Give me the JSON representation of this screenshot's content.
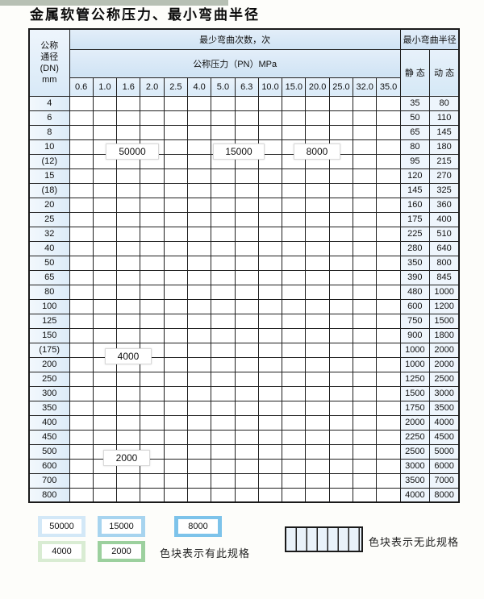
{
  "title": "金属软管公称压力、最小弯曲半径",
  "header": {
    "dn_line1": "公称",
    "dn_line2": "通径",
    "dn_line3": "(DN)",
    "dn_line4": "mm",
    "cycles_title": "最少弯曲次数，次",
    "pressure_title": "公称压力（PN）MPa",
    "radius_title": "最小弯曲半径",
    "static_label": "静 态",
    "dynamic_label": "动 态"
  },
  "pressures": [
    "0.6",
    "1.0",
    "1.6",
    "2.0",
    "2.5",
    "4.0",
    "5.0",
    "6.3",
    "10.0",
    "15.0",
    "20.0",
    "25.0",
    "32.0",
    "35.0"
  ],
  "zones": {
    "blue_light": {
      "label": "50000",
      "color": "#d3e8f7"
    },
    "blue_mid": {
      "label": "15000",
      "color": "#a7d4ef"
    },
    "blue_dark": {
      "label": "8000",
      "color": "#7dc3ea"
    },
    "green_light": {
      "label": "4000",
      "color": "#d9ecd3"
    },
    "green_dark": {
      "label": "2000",
      "color": "#9cd09e"
    }
  },
  "rows": [
    {
      "dn": "4",
      "static": "35",
      "dynamic": "80",
      "colored": 14,
      "zone": "blue"
    },
    {
      "dn": "6",
      "static": "50",
      "dynamic": "110",
      "colored": 12,
      "zone": "blue"
    },
    {
      "dn": "8",
      "static": "65",
      "dynamic": "145",
      "colored": 12,
      "zone": "blue"
    },
    {
      "dn": "10",
      "static": "80",
      "dynamic": "180",
      "colored": 12,
      "zone": "blue"
    },
    {
      "dn": "(12)",
      "static": "95",
      "dynamic": "215",
      "colored": 12,
      "zone": "blue"
    },
    {
      "dn": "15",
      "static": "120",
      "dynamic": "270",
      "colored": 12,
      "zone": "blue"
    },
    {
      "dn": "(18)",
      "static": "145",
      "dynamic": "325",
      "colored": 11,
      "zone": "blue"
    },
    {
      "dn": "20",
      "static": "160",
      "dynamic": "360",
      "colored": 11,
      "zone": "blue"
    },
    {
      "dn": "25",
      "static": "175",
      "dynamic": "400",
      "colored": 10,
      "zone": "blue"
    },
    {
      "dn": "32",
      "static": "225",
      "dynamic": "510",
      "colored": 9,
      "zone": "blue"
    },
    {
      "dn": "40",
      "static": "280",
      "dynamic": "640",
      "colored": 9,
      "zone": "blue"
    },
    {
      "dn": "50",
      "static": "350",
      "dynamic": "800",
      "colored": 8,
      "zone": "blue"
    },
    {
      "dn": "65",
      "static": "390",
      "dynamic": "845",
      "colored": 8,
      "zone": "blue"
    },
    {
      "dn": "80",
      "static": "480",
      "dynamic": "1000",
      "colored": 7,
      "zone": "blue"
    },
    {
      "dn": "100",
      "static": "600",
      "dynamic": "1200",
      "colored": 6,
      "zone": "green_light"
    },
    {
      "dn": "125",
      "static": "750",
      "dynamic": "1500",
      "colored": 6,
      "zone": "green_light"
    },
    {
      "dn": "150",
      "static": "900",
      "dynamic": "1800",
      "colored": 6,
      "zone": "green_light"
    },
    {
      "dn": "(175)",
      "static": "1000",
      "dynamic": "2000",
      "colored": 6,
      "zone": "green_light"
    },
    {
      "dn": "200",
      "static": "1000",
      "dynamic": "2000",
      "colored": 6,
      "zone": "green_light"
    },
    {
      "dn": "250",
      "static": "1250",
      "dynamic": "2500",
      "colored": 6,
      "zone": "green_light"
    },
    {
      "dn": "300",
      "static": "1500",
      "dynamic": "3000",
      "colored": 6,
      "zone": "green_light"
    },
    {
      "dn": "350",
      "static": "1750",
      "dynamic": "3500",
      "colored": 5,
      "zone": "green_dark"
    },
    {
      "dn": "400",
      "static": "2000",
      "dynamic": "4000",
      "colored": 5,
      "zone": "green_dark"
    },
    {
      "dn": "450",
      "static": "2250",
      "dynamic": "4500",
      "colored": 5,
      "zone": "green_dark"
    },
    {
      "dn": "500",
      "static": "2500",
      "dynamic": "5000",
      "colored": 5,
      "zone": "green_dark"
    },
    {
      "dn": "600",
      "static": "3000",
      "dynamic": "6000",
      "colored": 4,
      "zone": "green_dark"
    },
    {
      "dn": "700",
      "static": "3500",
      "dynamic": "7000",
      "colored": 3,
      "zone": "green_dark"
    },
    {
      "dn": "800",
      "static": "4000",
      "dynamic": "8000",
      "colored": 3,
      "zone": "green_dark"
    }
  ],
  "overlay_labels": [
    {
      "text": "50000"
    },
    {
      "text": "15000"
    },
    {
      "text": "8000"
    },
    {
      "text": "4000"
    },
    {
      "text": "2000"
    }
  ],
  "legend": {
    "swatches": [
      {
        "label": "50000",
        "zone": "blue_light"
      },
      {
        "label": "15000",
        "zone": "blue_mid"
      },
      {
        "label": "8000",
        "zone": "blue_dark"
      },
      {
        "label": "4000",
        "zone": "green_light"
      },
      {
        "label": "2000",
        "zone": "green_dark"
      }
    ],
    "has_spec_text": "色块表示有此规格",
    "no_spec_text": "色块表示无此规格"
  }
}
